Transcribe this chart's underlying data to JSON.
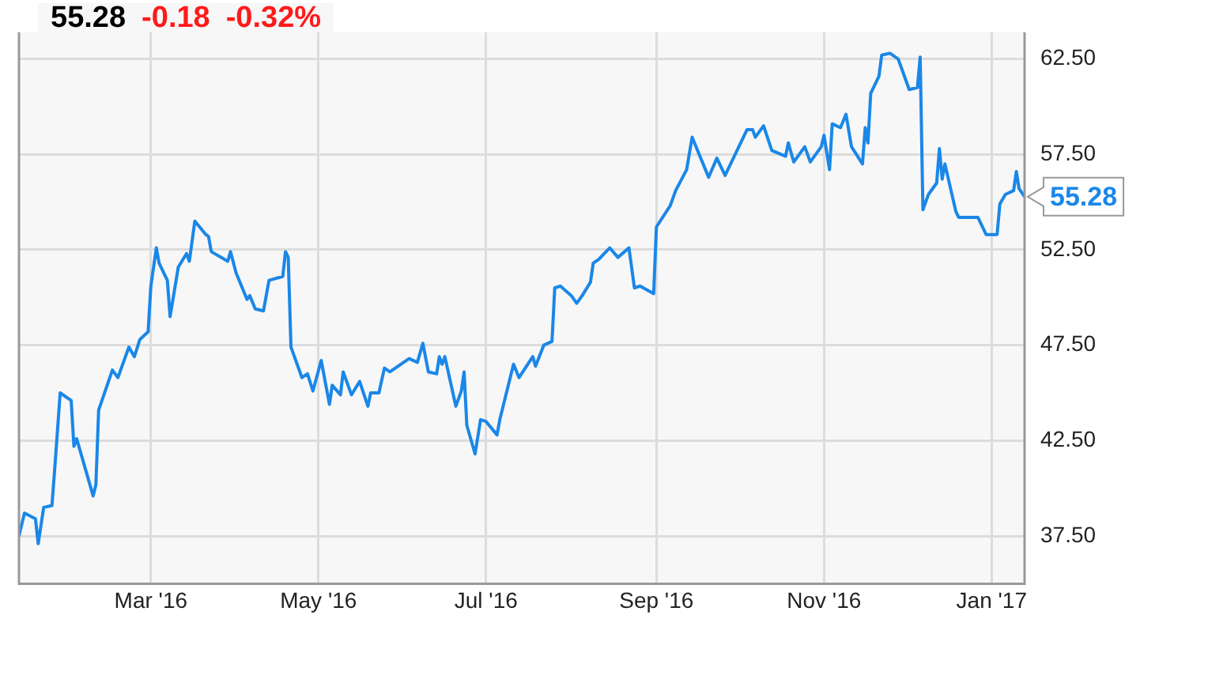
{
  "chart_data": {
    "type": "line",
    "title": "55.28",
    "annotations": [
      "-0.18",
      "-0.32%",
      {
        "text": "55.28",
        "x": "2017-01-13",
        "y": 55.28
      }
    ],
    "x": [
      "2016-01-13",
      "2016-01-15",
      "2016-01-19",
      "2016-01-20",
      "2016-01-22",
      "2016-01-25",
      "2016-01-26",
      "2016-01-28",
      "2016-02-01",
      "2016-02-02",
      "2016-02-03",
      "2016-02-09",
      "2016-02-10",
      "2016-02-11",
      "2016-02-16",
      "2016-02-18",
      "2016-02-22",
      "2016-02-24",
      "2016-02-26",
      "2016-02-29",
      "2016-03-01",
      "2016-03-03",
      "2016-03-04",
      "2016-03-07",
      "2016-03-08",
      "2016-03-11",
      "2016-03-14",
      "2016-03-15",
      "2016-03-17",
      "2016-03-21",
      "2016-03-22",
      "2016-03-23",
      "2016-03-29",
      "2016-03-30",
      "2016-04-01",
      "2016-04-05",
      "2016-04-06",
      "2016-04-08",
      "2016-04-11",
      "2016-04-13",
      "2016-04-18",
      "2016-04-19",
      "2016-04-20",
      "2016-04-21",
      "2016-04-25",
      "2016-04-27",
      "2016-04-29",
      "2016-05-02",
      "2016-05-05",
      "2016-05-06",
      "2016-05-09",
      "2016-05-10",
      "2016-05-13",
      "2016-05-16",
      "2016-05-19",
      "2016-05-20",
      "2016-05-23",
      "2016-05-25",
      "2016-05-27",
      "2016-06-01",
      "2016-06-03",
      "2016-06-06",
      "2016-06-08",
      "2016-06-10",
      "2016-06-13",
      "2016-06-14",
      "2016-06-15",
      "2016-06-16",
      "2016-06-20",
      "2016-06-22",
      "2016-06-23",
      "2016-06-24",
      "2016-06-27",
      "2016-06-29",
      "2016-07-01",
      "2016-07-05",
      "2016-07-06",
      "2016-07-11",
      "2016-07-13",
      "2016-07-18",
      "2016-07-19",
      "2016-07-22",
      "2016-07-25",
      "2016-07-26",
      "2016-07-28",
      "2016-08-01",
      "2016-08-03",
      "2016-08-05",
      "2016-08-08",
      "2016-08-09",
      "2016-08-11",
      "2016-08-15",
      "2016-08-18",
      "2016-08-22",
      "2016-08-24",
      "2016-08-26",
      "2016-08-31",
      "2016-09-01",
      "2016-09-06",
      "2016-09-08",
      "2016-09-12",
      "2016-09-14",
      "2016-09-16",
      "2016-09-20",
      "2016-09-23",
      "2016-09-26",
      "2016-09-30",
      "2016-10-04",
      "2016-10-06",
      "2016-10-07",
      "2016-10-10",
      "2016-10-13",
      "2016-10-18",
      "2016-10-19",
      "2016-10-21",
      "2016-10-25",
      "2016-10-27",
      "2016-10-31",
      "2016-11-01",
      "2016-11-03",
      "2016-11-04",
      "2016-11-07",
      "2016-11-09",
      "2016-11-11",
      "2016-11-15",
      "2016-11-16",
      "2016-11-17",
      "2016-11-18",
      "2016-11-21",
      "2016-11-22",
      "2016-11-25",
      "2016-11-28",
      "2016-11-29",
      "2016-12-02",
      "2016-12-05",
      "2016-12-06",
      "2016-12-07",
      "2016-12-09",
      "2016-12-12",
      "2016-12-13",
      "2016-12-14",
      "2016-12-15",
      "2016-12-19",
      "2016-12-20",
      "2016-12-22",
      "2016-12-27",
      "2016-12-28",
      "2016-12-30",
      "2017-01-03",
      "2017-01-04",
      "2017-01-06",
      "2017-01-09",
      "2017-01-10",
      "2017-01-11",
      "2017-01-13"
    ],
    "series": [
      {
        "color": "#1a87e8",
        "values": [
          37.5,
          38.7,
          38.4,
          37.1,
          39.0,
          39.1,
          41.0,
          45.0,
          44.6,
          42.2,
          42.6,
          39.6,
          40.2,
          44.1,
          46.2,
          45.8,
          47.4,
          46.9,
          47.8,
          48.2,
          50.6,
          52.6,
          51.8,
          50.9,
          49.0,
          51.6,
          52.3,
          51.9,
          54.0,
          53.3,
          53.2,
          52.4,
          51.9,
          52.4,
          51.3,
          49.9,
          50.1,
          49.4,
          49.3,
          50.9,
          51.1,
          52.4,
          52.1,
          47.4,
          45.8,
          46.0,
          45.1,
          46.7,
          44.4,
          45.4,
          44.9,
          46.1,
          44.9,
          45.6,
          44.3,
          45.0,
          45.0,
          46.3,
          46.1,
          46.6,
          46.8,
          46.6,
          47.6,
          46.1,
          46.0,
          46.9,
          46.5,
          46.9,
          44.3,
          45.1,
          46.1,
          43.3,
          41.8,
          43.6,
          43.5,
          42.8,
          43.6,
          46.5,
          45.8,
          46.9,
          46.4,
          47.5,
          47.7,
          50.5,
          50.6,
          50.1,
          49.7,
          50.1,
          50.8,
          51.8,
          52.0,
          52.6,
          52.1,
          52.6,
          50.5,
          50.6,
          50.2,
          53.7,
          54.8,
          55.6,
          56.7,
          58.4,
          57.7,
          56.3,
          57.3,
          56.4,
          57.6,
          58.8,
          58.8,
          58.4,
          59.0,
          57.7,
          57.4,
          58.1,
          57.1,
          57.9,
          57.1,
          57.9,
          58.5,
          56.7,
          59.1,
          58.9,
          59.6,
          57.9,
          57.0,
          58.9,
          58.1,
          60.7,
          61.6,
          62.7,
          62.8,
          62.5,
          62.1,
          60.9,
          61.0,
          62.6,
          54.6,
          55.4,
          56.0,
          57.8,
          56.2,
          57.0,
          54.5,
          54.2,
          54.2,
          54.2,
          53.9,
          53.3,
          53.3,
          54.9,
          55.4,
          55.6,
          56.6,
          55.7,
          55.28
        ]
      }
    ],
    "xlim": [
      "2016-01-13",
      "2017-01-13"
    ],
    "xticks": [
      {
        "value": "2016-03-01",
        "label": "Mar '16"
      },
      {
        "value": "2016-05-01",
        "label": "May '16"
      },
      {
        "value": "2016-07-01",
        "label": "Jul '16"
      },
      {
        "value": "2016-09-01",
        "label": "Sep '16"
      },
      {
        "value": "2016-11-01",
        "label": "Nov '16"
      },
      {
        "value": "2017-01-01",
        "label": "Jan '17"
      }
    ],
    "ylim": [
      35,
      63.9
    ],
    "yticks": [
      {
        "value": 37.5,
        "label": "37.50"
      },
      {
        "value": 42.5,
        "label": "42.50"
      },
      {
        "value": 47.5,
        "label": "47.50"
      },
      {
        "value": 52.5,
        "label": "52.50"
      },
      {
        "value": 57.5,
        "label": "57.50"
      },
      {
        "value": 62.5,
        "label": "62.50"
      }
    ],
    "grid": true,
    "marker": "none",
    "line_style": "solid",
    "legend": false
  }
}
